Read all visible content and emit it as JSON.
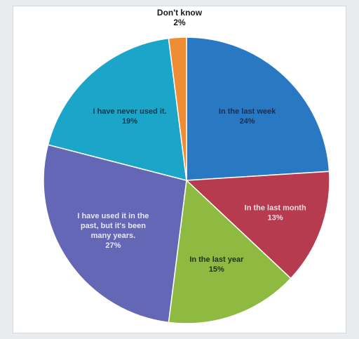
{
  "chart_data": {
    "type": "pie",
    "title": "",
    "slices": [
      {
        "label": [
          "In the last week"
        ],
        "percent_label": "24%",
        "value": 24,
        "color": "#2878c3",
        "text_color": "#1c2f52"
      },
      {
        "label": [
          "In the last month"
        ],
        "percent_label": "13%",
        "value": 13,
        "color": "#b73b4e",
        "text_color": "#f2dbe0"
      },
      {
        "label": [
          "In the last year"
        ],
        "percent_label": "15%",
        "value": 15,
        "color": "#8fba42",
        "text_color": "#1f3312"
      },
      {
        "label": [
          "I have used it in the",
          "past, but it's been",
          "many years."
        ],
        "percent_label": "27%",
        "value": 27,
        "color": "#6467b5",
        "text_color": "#e6e7f7"
      },
      {
        "label": [
          "I have never used it."
        ],
        "percent_label": "19%",
        "value": 19,
        "color": "#1ba5c9",
        "text_color": "#0f3a4c"
      },
      {
        "label": [
          "Don't know"
        ],
        "percent_label": "2%",
        "value": 2,
        "color": "#ef8d36",
        "text_color": "#1a1a1a"
      }
    ],
    "legend": "none"
  }
}
